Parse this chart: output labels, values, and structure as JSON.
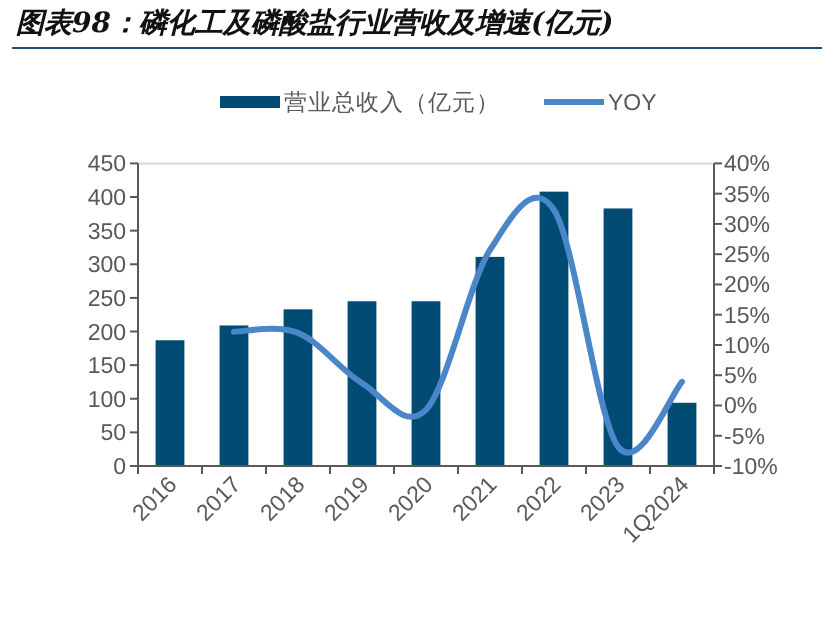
{
  "chart_data": {
    "type": "bar",
    "title": "图表98：磷化工及磷酸盐行业营收及增速(亿元)",
    "categories": [
      "2016",
      "2017",
      "2018",
      "2019",
      "2020",
      "2021",
      "2022",
      "2023",
      "1Q2024"
    ],
    "series": [
      {
        "name": "营业总收入（亿元）",
        "color": "#004b73",
        "values": [
          187,
          209,
          233,
          245,
          245,
          311,
          408,
          383,
          94
        ]
      },
      {
        "name": "YOY",
        "type": "line",
        "axis": "y2",
        "color": "#4a86c8",
        "line_style": "solid",
        "values": [
          null,
          12.2,
          12,
          3.7,
          -0.7,
          25.7,
          32.3,
          -6.8,
          3.9
        ]
      }
    ],
    "ylim": [
      0,
      450
    ],
    "yticks": [
      0,
      50,
      100,
      150,
      200,
      250,
      300,
      350,
      400,
      450
    ],
    "y2lim": [
      -10,
      40
    ],
    "y2ticks": [
      {
        "value": -10,
        "label": "-10%"
      },
      {
        "value": -5,
        "label": "-5%"
      },
      {
        "value": 0,
        "label": "0%"
      },
      {
        "value": 5,
        "label": "5%"
      },
      {
        "value": 10,
        "label": "10%"
      },
      {
        "value": 15,
        "label": "15%"
      },
      {
        "value": 20,
        "label": "20%"
      },
      {
        "value": 25,
        "label": "25%"
      },
      {
        "value": 30,
        "label": "30%"
      },
      {
        "value": 35,
        "label": "35%"
      },
      {
        "value": 40,
        "label": "40%"
      }
    ],
    "legend": "top",
    "grid": false
  }
}
